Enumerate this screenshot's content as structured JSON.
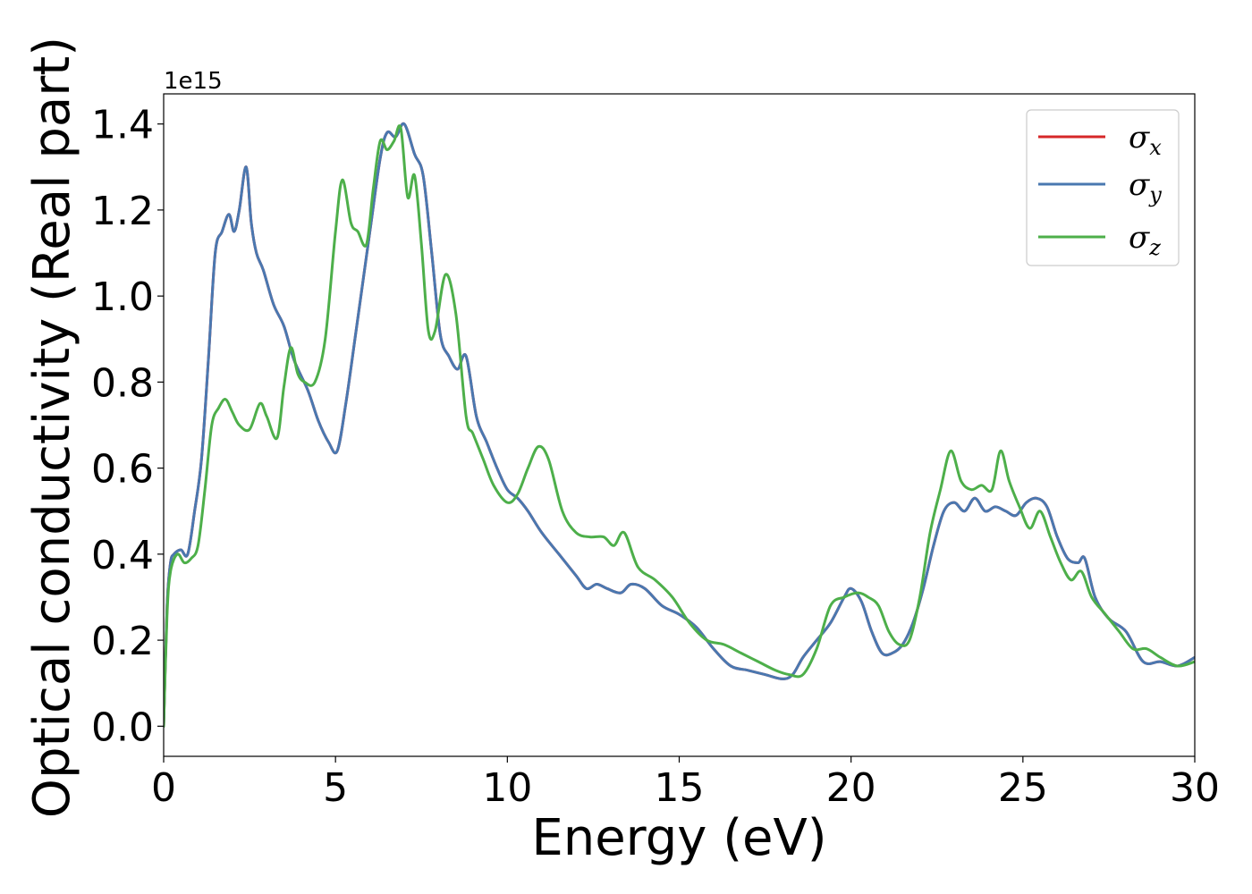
{
  "chart_data": {
    "type": "line",
    "xlabel": "Energy (eV)",
    "ylabel": "Optical conductivity (Real part)",
    "y_offset_label": "1e15",
    "xlim": [
      0,
      30
    ],
    "ylim": [
      -0.07,
      1.47
    ],
    "y_scale_factor": 1000000000000000.0,
    "x_ticks": [
      0,
      5,
      10,
      15,
      20,
      25,
      30
    ],
    "x_tick_labels": [
      "0",
      "5",
      "10",
      "15",
      "20",
      "25",
      "30"
    ],
    "y_ticks": [
      0.0,
      0.2,
      0.4,
      0.6,
      0.8,
      1.0,
      1.2,
      1.4
    ],
    "y_tick_labels": [
      "0.0",
      "0.2",
      "0.4",
      "0.6",
      "0.8",
      "1.0",
      "1.2",
      "1.4"
    ],
    "grid": false,
    "legend_placement": "top-right",
    "series": [
      {
        "name": "σx",
        "symbol": "σ",
        "subscript": "x",
        "color": "#d62728",
        "x": [
          0,
          0.1,
          0.2,
          0.3,
          0.5,
          0.7,
          0.9,
          1.1,
          1.3,
          1.5,
          1.7,
          1.9,
          2.05,
          2.2,
          2.4,
          2.55,
          2.7,
          2.9,
          3.2,
          3.5,
          3.8,
          4.2,
          4.5,
          4.8,
          5.05,
          5.3,
          5.6,
          6.0,
          6.3,
          6.5,
          6.75,
          7.0,
          7.3,
          7.55,
          7.8,
          8.05,
          8.3,
          8.55,
          8.8,
          9.1,
          9.4,
          9.7,
          10.0,
          10.3,
          10.6,
          11.0,
          11.5,
          12.0,
          12.3,
          12.6,
          12.9,
          13.3,
          13.6,
          14.0,
          14.5,
          15.0,
          15.5,
          16.0,
          16.5,
          17.0,
          17.5,
          18.0,
          18.3,
          18.6,
          19.0,
          19.4,
          19.8,
          20.0,
          20.3,
          20.6,
          20.9,
          21.2,
          21.5,
          21.8,
          22.1,
          22.4,
          22.7,
          23.0,
          23.3,
          23.6,
          23.9,
          24.2,
          24.5,
          24.8,
          25.1,
          25.4,
          25.7,
          26.0,
          26.3,
          26.6,
          26.8,
          27.1,
          27.5,
          28.0,
          28.5,
          29.0,
          29.5,
          30.0
        ],
        "values": [
          0.0,
          0.28,
          0.38,
          0.4,
          0.41,
          0.4,
          0.5,
          0.62,
          0.85,
          1.1,
          1.15,
          1.19,
          1.15,
          1.2,
          1.3,
          1.17,
          1.1,
          1.06,
          0.98,
          0.93,
          0.85,
          0.78,
          0.71,
          0.66,
          0.64,
          0.75,
          0.92,
          1.15,
          1.32,
          1.38,
          1.37,
          1.4,
          1.33,
          1.28,
          1.1,
          0.91,
          0.86,
          0.83,
          0.86,
          0.72,
          0.66,
          0.6,
          0.55,
          0.53,
          0.5,
          0.45,
          0.4,
          0.35,
          0.32,
          0.33,
          0.32,
          0.31,
          0.33,
          0.32,
          0.28,
          0.26,
          0.23,
          0.18,
          0.14,
          0.13,
          0.12,
          0.11,
          0.12,
          0.16,
          0.2,
          0.24,
          0.3,
          0.32,
          0.29,
          0.22,
          0.17,
          0.17,
          0.19,
          0.24,
          0.32,
          0.42,
          0.5,
          0.52,
          0.5,
          0.53,
          0.5,
          0.51,
          0.5,
          0.49,
          0.52,
          0.53,
          0.51,
          0.44,
          0.39,
          0.38,
          0.39,
          0.3,
          0.25,
          0.22,
          0.15,
          0.15,
          0.14,
          0.16
        ]
      },
      {
        "name": "σy",
        "symbol": "σ",
        "subscript": "y",
        "color": "#4a78b0",
        "x": [
          0,
          0.1,
          0.2,
          0.3,
          0.5,
          0.7,
          0.9,
          1.1,
          1.3,
          1.5,
          1.7,
          1.9,
          2.05,
          2.2,
          2.4,
          2.55,
          2.7,
          2.9,
          3.2,
          3.5,
          3.8,
          4.2,
          4.5,
          4.8,
          5.05,
          5.3,
          5.6,
          6.0,
          6.3,
          6.5,
          6.75,
          7.0,
          7.3,
          7.55,
          7.8,
          8.05,
          8.3,
          8.55,
          8.8,
          9.1,
          9.4,
          9.7,
          10.0,
          10.3,
          10.6,
          11.0,
          11.5,
          12.0,
          12.3,
          12.6,
          12.9,
          13.3,
          13.6,
          14.0,
          14.5,
          15.0,
          15.5,
          16.0,
          16.5,
          17.0,
          17.5,
          18.0,
          18.3,
          18.6,
          19.0,
          19.4,
          19.8,
          20.0,
          20.3,
          20.6,
          20.9,
          21.2,
          21.5,
          21.8,
          22.1,
          22.4,
          22.7,
          23.0,
          23.3,
          23.6,
          23.9,
          24.2,
          24.5,
          24.8,
          25.1,
          25.4,
          25.7,
          26.0,
          26.3,
          26.6,
          26.8,
          27.1,
          27.5,
          28.0,
          28.5,
          29.0,
          29.5,
          30.0
        ],
        "values": [
          0.0,
          0.28,
          0.38,
          0.4,
          0.41,
          0.4,
          0.5,
          0.62,
          0.85,
          1.1,
          1.15,
          1.19,
          1.15,
          1.2,
          1.3,
          1.17,
          1.1,
          1.06,
          0.98,
          0.93,
          0.85,
          0.78,
          0.71,
          0.66,
          0.64,
          0.75,
          0.92,
          1.15,
          1.32,
          1.38,
          1.37,
          1.4,
          1.33,
          1.28,
          1.1,
          0.91,
          0.86,
          0.83,
          0.86,
          0.72,
          0.66,
          0.6,
          0.55,
          0.53,
          0.5,
          0.45,
          0.4,
          0.35,
          0.32,
          0.33,
          0.32,
          0.31,
          0.33,
          0.32,
          0.28,
          0.26,
          0.23,
          0.18,
          0.14,
          0.13,
          0.12,
          0.11,
          0.12,
          0.16,
          0.2,
          0.24,
          0.3,
          0.32,
          0.29,
          0.22,
          0.17,
          0.17,
          0.19,
          0.24,
          0.32,
          0.42,
          0.5,
          0.52,
          0.5,
          0.53,
          0.5,
          0.51,
          0.5,
          0.49,
          0.52,
          0.53,
          0.51,
          0.44,
          0.39,
          0.38,
          0.39,
          0.3,
          0.25,
          0.22,
          0.15,
          0.15,
          0.14,
          0.16
        ]
      },
      {
        "name": "σz",
        "symbol": "σ",
        "subscript": "z",
        "color": "#4daf4a",
        "x": [
          0,
          0.1,
          0.2,
          0.4,
          0.6,
          0.8,
          1.0,
          1.2,
          1.4,
          1.6,
          1.8,
          2.0,
          2.2,
          2.5,
          2.8,
          3.0,
          3.3,
          3.5,
          3.7,
          3.9,
          4.1,
          4.4,
          4.7,
          5.0,
          5.2,
          5.45,
          5.65,
          5.9,
          6.1,
          6.3,
          6.5,
          6.7,
          6.9,
          7.1,
          7.3,
          7.5,
          7.7,
          7.9,
          8.2,
          8.5,
          8.8,
          9.0,
          9.3,
          9.6,
          10.0,
          10.3,
          10.6,
          10.9,
          11.2,
          11.6,
          12.0,
          12.4,
          12.8,
          13.1,
          13.4,
          13.8,
          14.3,
          14.8,
          15.3,
          15.8,
          16.3,
          16.8,
          17.3,
          17.8,
          18.2,
          18.6,
          19.0,
          19.4,
          19.8,
          20.2,
          20.5,
          20.8,
          21.1,
          21.4,
          21.7,
          22.0,
          22.3,
          22.6,
          22.9,
          23.2,
          23.5,
          23.8,
          24.1,
          24.35,
          24.6,
          24.9,
          25.2,
          25.5,
          25.8,
          26.1,
          26.4,
          26.7,
          27.0,
          27.4,
          27.8,
          28.2,
          28.6,
          29.0,
          29.5,
          30.0
        ],
        "values": [
          0.0,
          0.26,
          0.36,
          0.4,
          0.38,
          0.39,
          0.42,
          0.55,
          0.7,
          0.74,
          0.76,
          0.73,
          0.7,
          0.69,
          0.75,
          0.72,
          0.67,
          0.79,
          0.88,
          0.82,
          0.8,
          0.8,
          0.9,
          1.15,
          1.27,
          1.17,
          1.15,
          1.12,
          1.25,
          1.36,
          1.34,
          1.36,
          1.39,
          1.23,
          1.28,
          1.12,
          0.92,
          0.92,
          1.05,
          0.96,
          0.72,
          0.68,
          0.62,
          0.56,
          0.52,
          0.54,
          0.6,
          0.65,
          0.62,
          0.5,
          0.45,
          0.44,
          0.44,
          0.42,
          0.45,
          0.37,
          0.34,
          0.3,
          0.24,
          0.2,
          0.19,
          0.17,
          0.15,
          0.13,
          0.12,
          0.12,
          0.18,
          0.28,
          0.3,
          0.31,
          0.3,
          0.28,
          0.22,
          0.19,
          0.2,
          0.3,
          0.45,
          0.55,
          0.64,
          0.57,
          0.55,
          0.56,
          0.55,
          0.64,
          0.57,
          0.51,
          0.46,
          0.5,
          0.44,
          0.38,
          0.34,
          0.36,
          0.3,
          0.26,
          0.22,
          0.18,
          0.18,
          0.16,
          0.14,
          0.15
        ]
      }
    ]
  }
}
